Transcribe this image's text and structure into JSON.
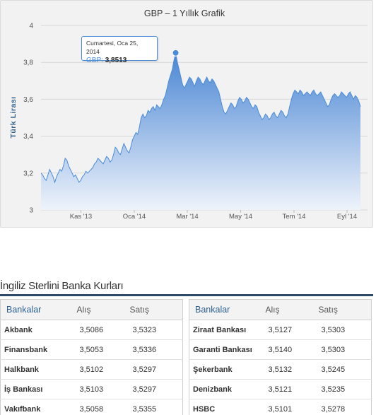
{
  "chart_data": {
    "type": "area",
    "title": "GBP – 1 Yıllık Grafik",
    "ylabel": "Türk Lirası",
    "series_name": "GBP",
    "ylim": [
      3,
      4
    ],
    "yticks": [
      "4",
      "3,8",
      "3,6",
      "3,4",
      "3,2",
      "3"
    ],
    "ytick_values": [
      4,
      3.8,
      3.6,
      3.4,
      3.2,
      3
    ],
    "xtick_labels": [
      "Kas '13",
      "Oca '14",
      "Mar '14",
      "May '14",
      "Tem '14",
      "Eyl '14"
    ],
    "xtick_positions": [
      0.125,
      0.292,
      0.458,
      0.625,
      0.792,
      0.958
    ],
    "values": [
      3.2,
      3.19,
      3.17,
      3.16,
      3.19,
      3.22,
      3.2,
      3.18,
      3.15,
      3.18,
      3.2,
      3.22,
      3.21,
      3.24,
      3.28,
      3.27,
      3.24,
      3.22,
      3.2,
      3.18,
      3.19,
      3.17,
      3.15,
      3.16,
      3.18,
      3.19,
      3.21,
      3.2,
      3.21,
      3.22,
      3.23,
      3.25,
      3.26,
      3.28,
      3.27,
      3.26,
      3.25,
      3.27,
      3.29,
      3.28,
      3.26,
      3.27,
      3.3,
      3.34,
      3.33,
      3.31,
      3.3,
      3.33,
      3.36,
      3.34,
      3.32,
      3.31,
      3.34,
      3.38,
      3.4,
      3.42,
      3.41,
      3.45,
      3.5,
      3.52,
      3.5,
      3.51,
      3.54,
      3.53,
      3.55,
      3.56,
      3.54,
      3.57,
      3.56,
      3.55,
      3.57,
      3.6,
      3.62,
      3.66,
      3.7,
      3.73,
      3.76,
      3.81,
      3.8513,
      3.8,
      3.76,
      3.72,
      3.68,
      3.66,
      3.68,
      3.7,
      3.72,
      3.71,
      3.69,
      3.67,
      3.7,
      3.72,
      3.71,
      3.69,
      3.68,
      3.7,
      3.72,
      3.7,
      3.69,
      3.71,
      3.7,
      3.68,
      3.66,
      3.64,
      3.6,
      3.56,
      3.53,
      3.52,
      3.54,
      3.56,
      3.58,
      3.57,
      3.55,
      3.56,
      3.59,
      3.61,
      3.6,
      3.58,
      3.59,
      3.61,
      3.6,
      3.58,
      3.56,
      3.55,
      3.57,
      3.56,
      3.53,
      3.51,
      3.49,
      3.5,
      3.52,
      3.51,
      3.49,
      3.5,
      3.52,
      3.53,
      3.51,
      3.5,
      3.52,
      3.54,
      3.53,
      3.51,
      3.5,
      3.52,
      3.56,
      3.6,
      3.63,
      3.65,
      3.64,
      3.63,
      3.65,
      3.64,
      3.62,
      3.63,
      3.64,
      3.63,
      3.62,
      3.64,
      3.65,
      3.63,
      3.62,
      3.63,
      3.64,
      3.62,
      3.6,
      3.58,
      3.56,
      3.57,
      3.6,
      3.62,
      3.63,
      3.62,
      3.61,
      3.62,
      3.64,
      3.63,
      3.62,
      3.61,
      3.63,
      3.64,
      3.62,
      3.6,
      3.62,
      3.61,
      3.59,
      3.56
    ],
    "highlight_index": 78,
    "grid": true,
    "legend": "none",
    "line_color": "#4b8cd6",
    "fill_top_color": "#4a86d4",
    "fill_bottom_color": "#eef3fb",
    "tooltip": {
      "date": "Cumartesi, Oca 25, 2014",
      "series_label": "GBP:",
      "value": "3,8513"
    }
  },
  "section": {
    "title": "İngiliz Sterlini Banka Kurları"
  },
  "table_headers": {
    "bank": "Bankalar",
    "buy": "Alış",
    "sell": "Satış"
  },
  "left_table": [
    {
      "bank": "Akbank",
      "buy": "3,5086",
      "sell": "3,5323"
    },
    {
      "bank": "Finansbank",
      "buy": "3,5053",
      "sell": "3,5336"
    },
    {
      "bank": "Halkbank",
      "buy": "3,5102",
      "sell": "3,5297"
    },
    {
      "bank": "İş Bankası",
      "buy": "3,5103",
      "sell": "3,5297"
    },
    {
      "bank": "Vakıfbank",
      "buy": "3,5058",
      "sell": "3,5355"
    }
  ],
  "right_table": [
    {
      "bank": "Ziraat Bankası",
      "buy": "3,5127",
      "sell": "3,5303"
    },
    {
      "bank": "Garanti Bankası",
      "buy": "3,5140",
      "sell": "3,5303"
    },
    {
      "bank": "Şekerbank",
      "buy": "3,5132",
      "sell": "3,5245"
    },
    {
      "bank": "Denizbank",
      "buy": "3,5121",
      "sell": "3,5235"
    },
    {
      "bank": "HSBC",
      "buy": "3,5101",
      "sell": "3,5278"
    }
  ]
}
